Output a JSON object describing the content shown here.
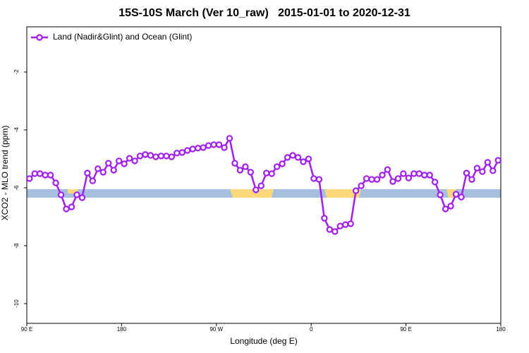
{
  "chart_data": {
    "type": "line",
    "title": "15S-10S March (Ver 10_raw)   2015-01-01 to 2020-12-31",
    "xlabel": "Longitude (deg E)",
    "ylabel": "XCO2 - MLO trend (ppm)",
    "xlim": [
      90,
      540
    ],
    "ylim": [
      -10.68,
      -0.44
    ],
    "xticks": [
      {
        "value": 90,
        "label": "90 E"
      },
      {
        "value": 180,
        "label": "180"
      },
      {
        "value": 270,
        "label": "90 W"
      },
      {
        "value": 360,
        "label": "0"
      },
      {
        "value": 450,
        "label": "90 E"
      },
      {
        "value": 540,
        "label": "180"
      }
    ],
    "yticks": [
      -2,
      -4,
      -6,
      -8,
      -10
    ],
    "legend": "upper left",
    "x": [
      92.5,
      97.5,
      102.5,
      107.5,
      112.5,
      117.5,
      122.5,
      127.5,
      132.5,
      137.5,
      142.5,
      147.5,
      152.5,
      157.5,
      162.5,
      167.5,
      172.5,
      177.5,
      182.5,
      187.5,
      192.5,
      197.5,
      202.5,
      207.5,
      212.5,
      217.5,
      222.5,
      227.5,
      232.5,
      237.5,
      242.5,
      247.5,
      252.5,
      257.5,
      262.5,
      267.5,
      272.5,
      277.5,
      282.5,
      287.5,
      292.5,
      297.5,
      302.5,
      307.5,
      312.5,
      317.5,
      322.5,
      327.5,
      332.5,
      337.5,
      342.5,
      347.5,
      352.5,
      357.5,
      362.5,
      367.5,
      372.5,
      377.5,
      382.5,
      387.5,
      392.5,
      397.5,
      402.5,
      407.5,
      412.5,
      417.5,
      422.5,
      427.5,
      432.5,
      437.5,
      442.5,
      447.5,
      452.5,
      457.5,
      462.5,
      467.5,
      472.5,
      477.5,
      482.5,
      487.5,
      492.5,
      497.5,
      502.5,
      507.5,
      512.5,
      517.5,
      522.5,
      527.5,
      532.5,
      537.5
    ],
    "series": [
      {
        "name": "Land (Nadir&Glint) and Ocean (Glint)",
        "color": "#a020f0",
        "values": [
          -5.68,
          -5.51,
          -5.51,
          -5.56,
          -5.56,
          -5.83,
          -6.24,
          -6.73,
          -6.66,
          -6.24,
          -6.34,
          -5.49,
          -5.76,
          -5.34,
          -5.46,
          -5.15,
          -5.39,
          -5.07,
          -5.17,
          -4.98,
          -5.07,
          -4.9,
          -4.85,
          -4.88,
          -4.93,
          -4.9,
          -4.9,
          -4.93,
          -4.8,
          -4.78,
          -4.71,
          -4.66,
          -4.63,
          -4.61,
          -4.54,
          -4.51,
          -4.51,
          -4.61,
          -4.29,
          -5.15,
          -5.39,
          -5.27,
          -5.46,
          -6.07,
          -5.93,
          -5.49,
          -5.51,
          -5.27,
          -5.17,
          -4.95,
          -4.88,
          -4.95,
          -5.1,
          -5.0,
          -5.68,
          -5.71,
          -7.05,
          -7.44,
          -7.51,
          -7.32,
          -7.27,
          -7.24,
          -6.1,
          -5.93,
          -5.68,
          -5.71,
          -5.71,
          -5.56,
          -5.37,
          -5.78,
          -5.68,
          -5.51,
          -5.66,
          -5.51,
          -5.51,
          -5.56,
          -5.56,
          -5.8,
          -6.24,
          -6.73,
          -6.63,
          -6.22,
          -6.32,
          -5.49,
          -5.71,
          -5.32,
          -5.44,
          -5.12,
          -5.41,
          -5.05
        ]
      }
    ]
  }
}
